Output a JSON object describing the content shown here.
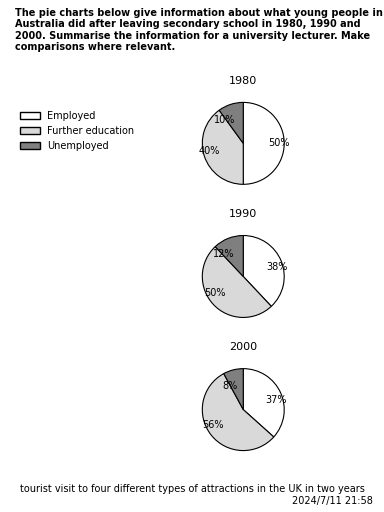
{
  "instructions": "The pie charts below give information about what young people in Australia did after leaving secondary school in 1980, 1990 and 2000. Summarise the information for a university lecturer. Make comparisons where relevant.",
  "chart_data": [
    {
      "type": "pie",
      "title": "1980",
      "categories": [
        "Employed",
        "Further education",
        "Unemployed"
      ],
      "values": [
        50,
        40,
        10
      ],
      "value_labels": [
        "50%",
        "40%",
        "10%"
      ],
      "colors": [
        "#ffffff",
        "#d9d9d9",
        "#7f7f7f"
      ],
      "data_labels": true,
      "legend": "upper left"
    },
    {
      "type": "pie",
      "title": "1990",
      "categories": [
        "Employed",
        "Further education",
        "Unemployed"
      ],
      "values": [
        38,
        50,
        12
      ],
      "value_labels": [
        "38%",
        "50%",
        "12%"
      ],
      "colors": [
        "#ffffff",
        "#d9d9d9",
        "#7f7f7f"
      ],
      "data_labels": true
    },
    {
      "type": "pie",
      "title": "2000",
      "categories": [
        "Employed",
        "Further education",
        "Unemployed"
      ],
      "values": [
        37,
        56,
        8
      ],
      "value_labels": [
        "37%",
        "56%",
        "8%"
      ],
      "colors": [
        "#ffffff",
        "#d9d9d9",
        "#7f7f7f"
      ],
      "data_labels": true
    }
  ],
  "footer": "tourist visit to four different types of attractions in the UK in two years",
  "timestamp": "2024/7/11 21:58"
}
